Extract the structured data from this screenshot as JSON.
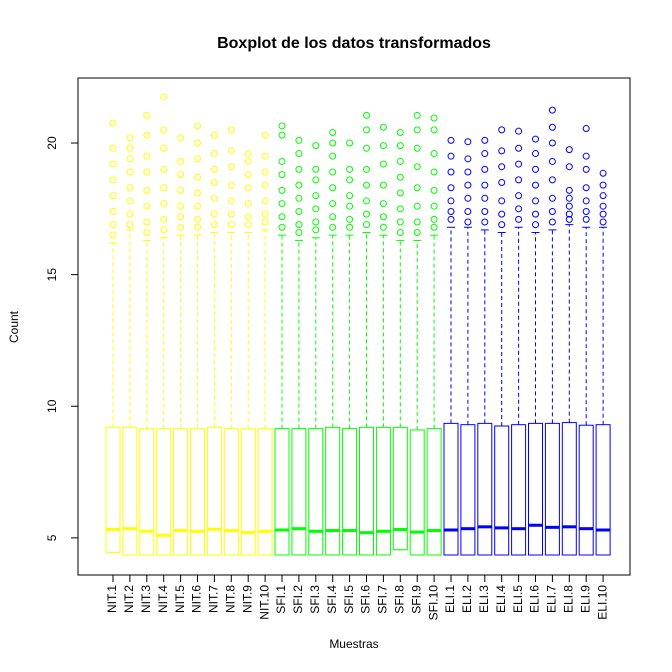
{
  "chart_data": {
    "type": "box",
    "title": "Boxplot de los datos transformados",
    "xlabel": "Muestras",
    "ylabel": "Count",
    "ylim": [
      3.59,
      22.47
    ],
    "yticks": [
      5,
      10,
      15,
      20
    ],
    "categories": [
      "NIT.1",
      "NIT.2",
      "NIT.3",
      "NIT.4",
      "NIT.5",
      "NIT.6",
      "NIT.7",
      "NIT.8",
      "NIT.9",
      "NIT.10",
      "SFI.1",
      "SFI.2",
      "SFI.3",
      "SFI.4",
      "SFI.5",
      "SFI.6",
      "SFI.7",
      "SFI.8",
      "SFI.9",
      "SFI.10",
      "ELI.1",
      "ELI.2",
      "ELI.3",
      "ELI.4",
      "ELI.5",
      "ELI.6",
      "ELI.7",
      "ELI.8",
      "ELI.9",
      "ELI.10"
    ],
    "series": [
      {
        "color": "#ffff00",
        "boxes": [
          {
            "min": 4.45,
            "q1": 4.45,
            "median": 5.32,
            "q3": 9.2,
            "max": 16.2,
            "outliers": [
              16.5,
              16.9,
              17.4,
              18.0,
              18.6,
              19.2,
              19.8,
              20.75
            ]
          },
          {
            "min": 4.35,
            "q1": 4.35,
            "median": 5.35,
            "q3": 9.2,
            "max": 16.7,
            "outliers": [
              16.9,
              17.3,
              17.8,
              18.3,
              18.9,
              19.4,
              19.8,
              20.2
            ]
          },
          {
            "min": 4.35,
            "q1": 4.35,
            "median": 5.25,
            "q3": 9.15,
            "max": 16.3,
            "outliers": [
              16.6,
              17.0,
              17.6,
              18.2,
              18.9,
              19.5,
              20.3,
              21.05
            ]
          },
          {
            "min": 4.35,
            "q1": 4.35,
            "median": 5.1,
            "q3": 9.15,
            "max": 16.4,
            "outliers": [
              16.7,
              17.1,
              17.7,
              18.3,
              19.0,
              19.8,
              20.5,
              21.75
            ]
          },
          {
            "min": 4.35,
            "q1": 4.35,
            "median": 5.28,
            "q3": 9.15,
            "max": 16.5,
            "outliers": [
              16.8,
              17.2,
              17.6,
              18.2,
              18.8,
              19.3,
              20.2
            ]
          },
          {
            "min": 4.35,
            "q1": 4.35,
            "median": 5.25,
            "q3": 9.15,
            "max": 16.5,
            "outliers": [
              16.8,
              17.1,
              17.6,
              18.1,
              18.7,
              19.4,
              20.0,
              20.65
            ]
          },
          {
            "min": 4.35,
            "q1": 4.35,
            "median": 5.33,
            "q3": 9.2,
            "max": 16.6,
            "outliers": [
              16.9,
              17.3,
              17.9,
              18.5,
              19.0,
              19.6,
              20.3
            ]
          },
          {
            "min": 4.35,
            "q1": 4.35,
            "median": 5.28,
            "q3": 9.15,
            "max": 16.6,
            "outliers": [
              16.9,
              17.3,
              17.8,
              18.4,
              19.1,
              19.7,
              20.5
            ]
          },
          {
            "min": 4.35,
            "q1": 4.35,
            "median": 5.2,
            "q3": 9.15,
            "max": 16.6,
            "outliers": [
              16.9,
              17.2,
              17.7,
              18.3,
              18.8,
              19.3,
              19.6
            ]
          },
          {
            "min": 4.35,
            "q1": 4.35,
            "median": 5.25,
            "q3": 9.15,
            "max": 16.7,
            "outliers": [
              17.0,
              17.3,
              17.8,
              18.4,
              18.9,
              19.5,
              20.3
            ]
          }
        ]
      },
      {
        "color": "#00ff00",
        "boxes": [
          {
            "min": 4.35,
            "q1": 4.35,
            "median": 5.3,
            "q3": 9.15,
            "max": 16.5,
            "outliers": [
              16.8,
              17.2,
              17.7,
              18.2,
              18.8,
              19.3,
              20.3,
              20.65
            ]
          },
          {
            "min": 4.35,
            "q1": 4.35,
            "median": 5.35,
            "q3": 9.15,
            "max": 16.3,
            "outliers": [
              16.6,
              16.9,
              17.4,
              17.9,
              18.4,
              19.0,
              19.6,
              20.1
            ]
          },
          {
            "min": 4.35,
            "q1": 4.35,
            "median": 5.25,
            "q3": 9.15,
            "max": 16.4,
            "outliers": [
              16.7,
              17.0,
              17.5,
              18.0,
              18.6,
              19.0,
              19.9
            ]
          },
          {
            "min": 4.35,
            "q1": 4.35,
            "median": 5.28,
            "q3": 9.2,
            "max": 16.5,
            "outliers": [
              16.8,
              17.2,
              17.7,
              18.3,
              18.9,
              19.5,
              20.0,
              20.4
            ]
          },
          {
            "min": 4.35,
            "q1": 4.35,
            "median": 5.28,
            "q3": 9.15,
            "max": 16.5,
            "outliers": [
              16.8,
              17.1,
              17.6,
              18.0,
              18.6,
              19.0,
              20.0
            ]
          },
          {
            "min": 4.35,
            "q1": 4.35,
            "median": 5.2,
            "q3": 9.2,
            "max": 16.6,
            "outliers": [
              16.9,
              17.3,
              17.8,
              18.4,
              19.0,
              19.8,
              20.5,
              21.05
            ]
          },
          {
            "min": 4.35,
            "q1": 4.35,
            "median": 5.25,
            "q3": 9.2,
            "max": 16.5,
            "outliers": [
              16.8,
              17.2,
              17.7,
              18.4,
              19.2,
              19.9,
              20.6
            ]
          },
          {
            "min": 4.55,
            "q1": 4.55,
            "median": 5.32,
            "q3": 9.2,
            "max": 16.3,
            "outliers": [
              16.6,
              17.0,
              17.5,
              18.1,
              18.7,
              19.3,
              19.9,
              20.4
            ]
          },
          {
            "min": 4.35,
            "q1": 4.35,
            "median": 5.22,
            "q3": 9.1,
            "max": 16.3,
            "outliers": [
              16.6,
              17.0,
              17.6,
              18.3,
              19.1,
              19.8,
              20.5,
              21.05
            ]
          },
          {
            "min": 4.35,
            "q1": 4.35,
            "median": 5.28,
            "q3": 9.15,
            "max": 16.5,
            "outliers": [
              16.8,
              17.1,
              17.6,
              18.2,
              18.9,
              19.6,
              20.5,
              20.95
            ]
          }
        ]
      },
      {
        "color": "#0000ff",
        "boxes": [
          {
            "min": 4.35,
            "q1": 4.35,
            "median": 5.3,
            "q3": 9.35,
            "max": 16.8,
            "outliers": [
              17.1,
              17.4,
              17.8,
              18.3,
              18.9,
              19.5,
              20.1
            ]
          },
          {
            "min": 4.35,
            "q1": 4.35,
            "median": 5.35,
            "q3": 9.3,
            "max": 16.8,
            "outliers": [
              17.0,
              17.4,
              17.9,
              18.4,
              18.9,
              19.4,
              20.05
            ]
          },
          {
            "min": 4.35,
            "q1": 4.35,
            "median": 5.42,
            "q3": 9.35,
            "max": 16.7,
            "outliers": [
              17.0,
              17.4,
              17.9,
              18.4,
              19.0,
              19.6,
              20.1
            ]
          },
          {
            "min": 4.35,
            "q1": 4.35,
            "median": 5.38,
            "q3": 9.25,
            "max": 16.6,
            "outliers": [
              16.9,
              17.3,
              17.8,
              18.5,
              19.1,
              19.7,
              20.5
            ]
          },
          {
            "min": 4.35,
            "q1": 4.35,
            "median": 5.35,
            "q3": 9.3,
            "max": 16.8,
            "outliers": [
              17.1,
              17.5,
              18.0,
              18.6,
              19.2,
              19.8,
              20.45
            ]
          },
          {
            "min": 4.35,
            "q1": 4.35,
            "median": 5.48,
            "q3": 9.35,
            "max": 16.6,
            "outliers": [
              16.9,
              17.3,
              17.8,
              18.4,
              19.0,
              19.6,
              20.15
            ]
          },
          {
            "min": 4.35,
            "q1": 4.35,
            "median": 5.4,
            "q3": 9.35,
            "max": 16.7,
            "outliers": [
              17.0,
              17.4,
              17.9,
              18.6,
              19.3,
              20.0,
              20.6,
              21.25
            ]
          },
          {
            "min": 4.35,
            "q1": 4.35,
            "median": 5.42,
            "q3": 9.38,
            "max": 16.9,
            "outliers": [
              17.1,
              17.3,
              17.6,
              17.9,
              18.2,
              19.1,
              19.75
            ]
          },
          {
            "min": 4.35,
            "q1": 4.35,
            "median": 5.35,
            "q3": 9.28,
            "max": 16.8,
            "outliers": [
              17.1,
              17.4,
              17.8,
              18.3,
              19.0,
              19.5,
              20.55
            ]
          },
          {
            "min": 4.35,
            "q1": 4.35,
            "median": 5.3,
            "q3": 9.3,
            "max": 16.8,
            "outliers": [
              17.0,
              17.3,
              17.6,
              18.0,
              18.4,
              18.85
            ]
          }
        ]
      }
    ]
  }
}
